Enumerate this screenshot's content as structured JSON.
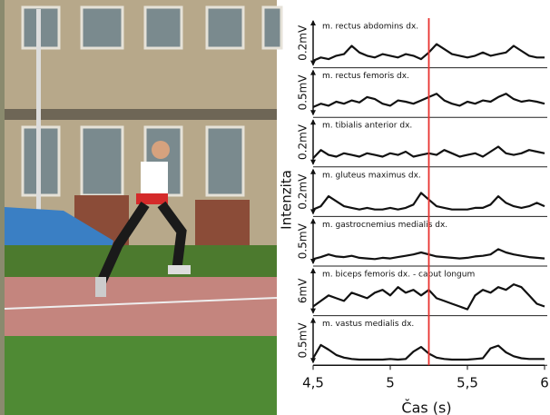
{
  "chart_data": {
    "type": "line",
    "x_label": "Čas (s)",
    "y_label": "Intenzita",
    "x": [
      4.5,
      4.55,
      4.6,
      4.65,
      4.7,
      4.75,
      4.8,
      4.85,
      4.9,
      4.95,
      5,
      5.05,
      5.1,
      5.15,
      5.2,
      5.25,
      5.3,
      5.35,
      5.4,
      5.45,
      5.5,
      5.55,
      5.6,
      5.65,
      5.7,
      5.75,
      5.8,
      5.85,
      5.9,
      5.95,
      6
    ],
    "xlim": [
      4.5,
      6
    ],
    "xticks": [
      {
        "value": 4.5,
        "label": "4,5"
      },
      5,
      {
        "value": 5.5,
        "label": "5,5"
      },
      6
    ],
    "marker_x": 5.25,
    "marker_color": "#e8322f",
    "color": "#111111",
    "series": [
      {
        "name": "m. rectus abdomins dx.",
        "scale_label": "0.2mV",
        "ylim": [
          0,
          0.2
        ],
        "values": [
          0.02,
          0.04,
          0.03,
          0.05,
          0.06,
          0.11,
          0.07,
          0.05,
          0.04,
          0.06,
          0.05,
          0.04,
          0.06,
          0.05,
          0.03,
          0.07,
          0.12,
          0.09,
          0.06,
          0.05,
          0.04,
          0.05,
          0.07,
          0.05,
          0.06,
          0.07,
          0.11,
          0.08,
          0.05,
          0.04,
          0.04
        ]
      },
      {
        "name": "m. rectus femoris dx.",
        "scale_label": "0.5mV",
        "ylim": [
          0,
          0.5
        ],
        "values": [
          0.1,
          0.15,
          0.12,
          0.18,
          0.15,
          0.2,
          0.17,
          0.25,
          0.22,
          0.15,
          0.12,
          0.2,
          0.18,
          0.15,
          0.2,
          0.25,
          0.3,
          0.2,
          0.15,
          0.12,
          0.18,
          0.15,
          0.2,
          0.18,
          0.25,
          0.3,
          0.22,
          0.18,
          0.2,
          0.18,
          0.15
        ]
      },
      {
        "name": "m. tibialis anterior dx.",
        "scale_label": "0.2mV",
        "ylim": [
          0,
          0.2
        ],
        "values": [
          0.03,
          0.08,
          0.05,
          0.04,
          0.06,
          0.05,
          0.04,
          0.06,
          0.05,
          0.04,
          0.06,
          0.05,
          0.07,
          0.04,
          0.05,
          0.06,
          0.05,
          0.08,
          0.06,
          0.04,
          0.05,
          0.06,
          0.04,
          0.07,
          0.1,
          0.06,
          0.05,
          0.06,
          0.08,
          0.07,
          0.06
        ]
      },
      {
        "name": "m. gluteus maximus dx.",
        "scale_label": "0.2mV",
        "ylim": [
          0,
          0.2
        ],
        "values": [
          0.02,
          0.04,
          0.1,
          0.07,
          0.04,
          0.03,
          0.02,
          0.03,
          0.02,
          0.02,
          0.03,
          0.02,
          0.03,
          0.05,
          0.12,
          0.08,
          0.04,
          0.03,
          0.02,
          0.02,
          0.02,
          0.03,
          0.03,
          0.05,
          0.1,
          0.06,
          0.04,
          0.03,
          0.04,
          0.06,
          0.04
        ]
      },
      {
        "name": "m. gastrocnemius medialis dx.",
        "scale_label": "0.5mV",
        "ylim": [
          0,
          0.5
        ],
        "values": [
          0.05,
          0.08,
          0.12,
          0.09,
          0.08,
          0.1,
          0.07,
          0.06,
          0.05,
          0.07,
          0.06,
          0.08,
          0.1,
          0.12,
          0.15,
          0.12,
          0.09,
          0.08,
          0.07,
          0.06,
          0.07,
          0.09,
          0.1,
          0.12,
          0.2,
          0.15,
          0.12,
          0.1,
          0.08,
          0.07,
          0.06
        ]
      },
      {
        "name": "m. biceps femoris dx. - caput longum",
        "scale_label": "6mV",
        "ylim": [
          0,
          6
        ],
        "values": [
          1,
          2,
          3,
          2.5,
          2,
          3.5,
          3,
          2.5,
          3.5,
          4,
          3,
          4.5,
          3.5,
          4,
          3,
          4,
          2.5,
          2,
          1.5,
          1,
          0.5,
          3,
          4,
          3.5,
          4.5,
          4,
          5,
          4.5,
          3,
          1.5,
          1
        ]
      },
      {
        "name": "m. vastus medialis dx.",
        "scale_label": "0.5mV",
        "ylim": [
          0,
          0.5
        ],
        "values": [
          0.05,
          0.25,
          0.18,
          0.1,
          0.06,
          0.04,
          0.03,
          0.03,
          0.03,
          0.03,
          0.04,
          0.03,
          0.04,
          0.15,
          0.22,
          0.12,
          0.06,
          0.04,
          0.03,
          0.03,
          0.03,
          0.04,
          0.05,
          0.2,
          0.24,
          0.14,
          0.08,
          0.05,
          0.04,
          0.04,
          0.04
        ]
      }
    ]
  }
}
